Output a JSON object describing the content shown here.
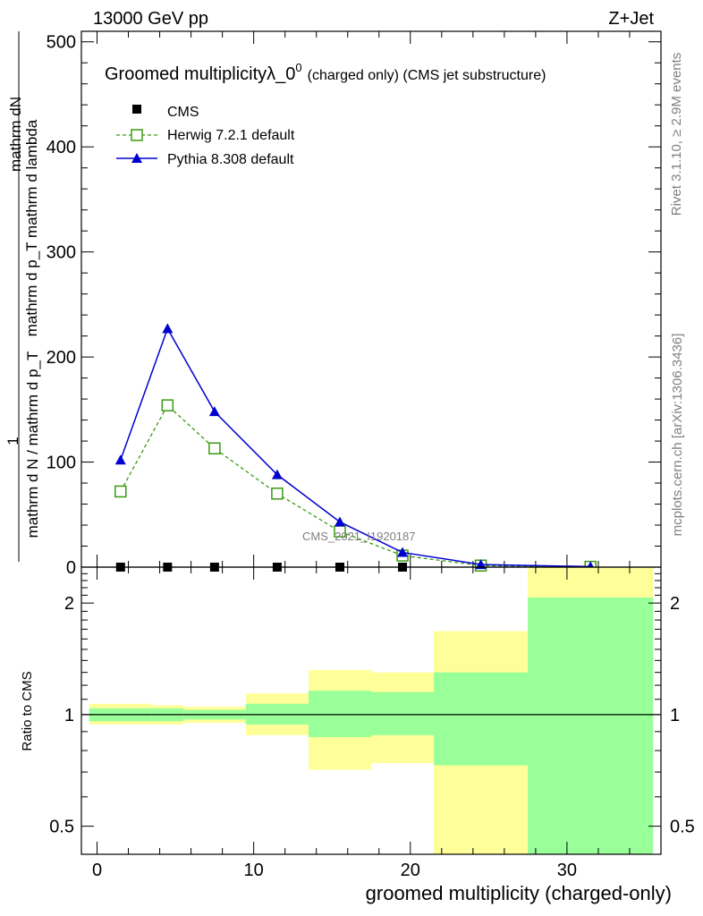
{
  "header": {
    "left": "13000 GeV pp",
    "right": "Z+Jet"
  },
  "side_labels": {
    "rivet": "Rivet 3.1.10, ≥ 2.9M events",
    "mcplots": "mcplots.cern.ch [arXiv:1306.3436]"
  },
  "chart_data": [
    {
      "type": "line",
      "title_main": "Groomed multiplicity",
      "title_lambda": "λ_0",
      "title_sup": "0",
      "title_suffix": "(charged only) (CMS jet substructure)",
      "ylabel_num": "mathrm dN",
      "ylabel_frac_num_rest": "mathrm d p_T mathrm d lambda",
      "ylabel_one": "1",
      "ylabel_den": "mathrm d N / mathrm d p_T",
      "watermark": "CMS_2021_I1920187",
      "ylim": [
        0,
        510
      ],
      "y_ticks": [
        0,
        100,
        200,
        300,
        400,
        500
      ],
      "xlim": [
        -1,
        36
      ],
      "legend_position": "top-left",
      "x": [
        1.5,
        4.5,
        7.5,
        11.5,
        15.5,
        19.5,
        24.5,
        31.5
      ],
      "series": [
        {
          "name": "CMS",
          "color": "#000000",
          "marker": "square-filled",
          "values": [
            0,
            0,
            0,
            0,
            0,
            0,
            0,
            0
          ]
        },
        {
          "name": "Herwig 7.2.1 default",
          "color": "#3a9a12",
          "marker": "square-open",
          "dashed": true,
          "values": [
            72,
            154,
            113,
            70,
            34,
            11,
            1.5,
            0.3
          ]
        },
        {
          "name": "Pythia 8.308 default",
          "color": "#0000d0",
          "marker": "triangle-filled",
          "values": [
            102,
            227,
            148,
            88,
            43,
            14,
            2.5,
            0.5
          ]
        }
      ]
    },
    {
      "type": "area",
      "ylabel": "Ratio to CMS",
      "xlabel": "groomed multiplicity (charged-only)",
      "x_ticks": [
        0,
        10,
        20,
        30
      ],
      "y_ticks": [
        0.5,
        1,
        2
      ],
      "y_tick_labels": [
        "0.5",
        "1",
        "2"
      ],
      "ylim": [
        0.42,
        2.5
      ],
      "log_scale": true,
      "reference_line": 1,
      "bins": [
        {
          "lo": -0.5,
          "hi": 3.5,
          "green": [
            0.96,
            1.04
          ],
          "yellow": [
            0.94,
            1.07
          ]
        },
        {
          "lo": 3.5,
          "hi": 5.5,
          "green": [
            0.96,
            1.04
          ],
          "yellow": [
            0.94,
            1.06
          ]
        },
        {
          "lo": 5.5,
          "hi": 9.5,
          "green": [
            0.97,
            1.03
          ],
          "yellow": [
            0.95,
            1.05
          ]
        },
        {
          "lo": 9.5,
          "hi": 13.5,
          "green": [
            0.94,
            1.07
          ],
          "yellow": [
            0.88,
            1.14
          ]
        },
        {
          "lo": 13.5,
          "hi": 17.5,
          "green": [
            0.87,
            1.16
          ],
          "yellow": [
            0.71,
            1.32
          ]
        },
        {
          "lo": 17.5,
          "hi": 21.5,
          "green": [
            0.88,
            1.15
          ],
          "yellow": [
            0.74,
            1.3
          ]
        },
        {
          "lo": 21.5,
          "hi": 27.5,
          "green": [
            0.73,
            1.3
          ],
          "yellow": [
            0.3,
            1.68
          ]
        },
        {
          "lo": 27.5,
          "hi": 35.5,
          "green": [
            0.3,
            2.07
          ],
          "yellow": [
            0.3,
            3.0
          ]
        }
      ],
      "colors": {
        "green": "#99ff99",
        "yellow": "#ffff99"
      }
    }
  ]
}
